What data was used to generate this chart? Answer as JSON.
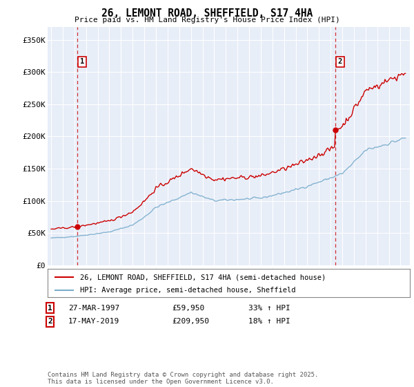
{
  "title": "26, LEMONT ROAD, SHEFFIELD, S17 4HA",
  "subtitle": "Price paid vs. HM Land Registry's House Price Index (HPI)",
  "legend_label1": "26, LEMONT ROAD, SHEFFIELD, S17 4HA (semi-detached house)",
  "legend_label2": "HPI: Average price, semi-detached house, Sheffield",
  "sale1_date": "27-MAR-1997",
  "sale1_price": 59950,
  "sale1_label": "1",
  "sale1_pct": "33% ↑ HPI",
  "sale2_date": "17-MAY-2019",
  "sale2_price": 209950,
  "sale2_label": "2",
  "sale2_pct": "18% ↑ HPI",
  "footnote": "Contains HM Land Registry data © Crown copyright and database right 2025.\nThis data is licensed under the Open Government Licence v3.0.",
  "line_color_property": "#cc0000",
  "line_color_hpi": "#7aadcc",
  "vline_color": "#cc0000",
  "background_color": "#e8eef8",
  "ylim": [
    0,
    370000
  ],
  "yticks": [
    0,
    50000,
    100000,
    150000,
    200000,
    250000,
    300000,
    350000
  ],
  "ytick_labels": [
    "£0",
    "£50K",
    "£100K",
    "£150K",
    "£200K",
    "£250K",
    "£300K",
    "£350K"
  ],
  "sale1_year": 1997.23,
  "sale2_year": 2019.38,
  "hpi_scale1": 1.33,
  "hpi_scale2": 1.18
}
